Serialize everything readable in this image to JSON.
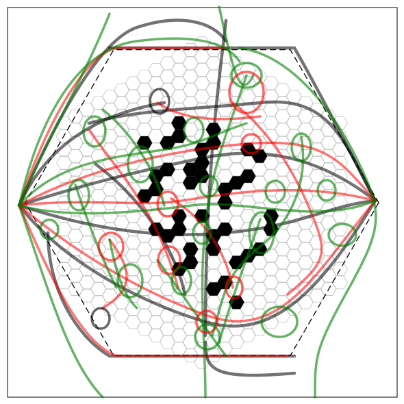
{
  "figure": {
    "kind": "hexagonal-grid-path-plot",
    "frame": true,
    "grid": true,
    "obstacle_color": "#000000",
    "grid_color": "#c8c8c8",
    "boundary_color": "#000000"
  },
  "path_sets": [
    {
      "color": "#000000",
      "opacity": 0.55,
      "width": 4.5
    },
    {
      "color": "#ff0000",
      "opacity": 0.55,
      "width": 3.5
    },
    {
      "color": "#008000",
      "opacity": 0.6,
      "width": 3.5
    }
  ],
  "obstacle_cells": [
    [
      -5,
      2
    ],
    [
      -4,
      1
    ],
    [
      -4,
      0
    ],
    [
      -3,
      -1
    ],
    [
      -3,
      -3
    ],
    [
      -2,
      -4
    ],
    [
      -2,
      -5
    ],
    [
      -3,
      4
    ],
    [
      -2,
      3
    ],
    [
      -2,
      2
    ],
    [
      -1,
      -1
    ],
    [
      -1,
      -2
    ],
    [
      0,
      -2
    ],
    [
      0,
      -3
    ],
    [
      1,
      3
    ],
    [
      1,
      2
    ],
    [
      -1,
      5
    ],
    [
      -1,
      4
    ],
    [
      -2,
      6
    ],
    [
      0,
      1
    ],
    [
      0,
      -4
    ],
    [
      2,
      1
    ],
    [
      2,
      -1
    ],
    [
      2,
      -2
    ],
    [
      3,
      -3
    ],
    [
      4,
      -4
    ],
    [
      4,
      -6
    ],
    [
      5,
      -6
    ],
    [
      4,
      2
    ],
    [
      5,
      1
    ],
    [
      6,
      -1
    ],
    [
      6,
      -2
    ],
    [
      3,
      3
    ],
    [
      1,
      6
    ],
    [
      2,
      5
    ],
    [
      3,
      6
    ],
    [
      -5,
      -2
    ],
    [
      -4,
      4
    ],
    [
      1,
      -5
    ],
    [
      1,
      -6
    ]
  ]
}
